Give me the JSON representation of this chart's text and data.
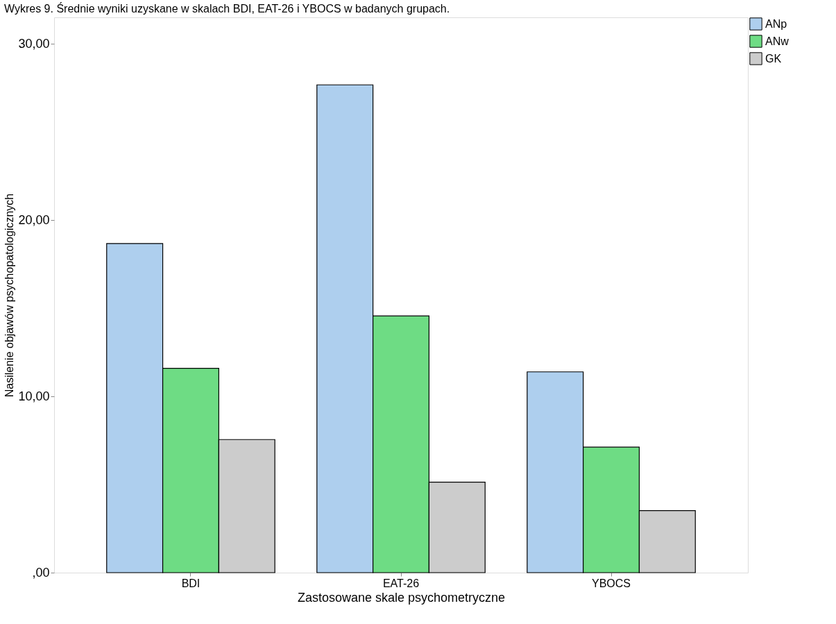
{
  "chart_data": {
    "type": "bar",
    "title": "Wykres 9. Średnie wyniki uzyskane w skalach BDI, EAT-26 i YBOCS w badanych grupach.",
    "xlabel": "Zastosowane skale psychometryczne",
    "ylabel": "Nasilenie objawów psychopatologicznych",
    "categories": [
      "BDI",
      "EAT-26",
      "YBOCS"
    ],
    "series": [
      {
        "name": "ANp",
        "color": "#aecfee",
        "values": [
          18.67,
          27.67,
          11.39
        ]
      },
      {
        "name": "ANw",
        "color": "#6edc84",
        "values": [
          11.59,
          14.56,
          7.12
        ]
      },
      {
        "name": "GK",
        "color": "#cccccc",
        "values": [
          7.55,
          5.13,
          3.52
        ]
      }
    ],
    "ylim": [
      0,
      31.5
    ],
    "yticks": [
      {
        "value": 0,
        "label": ",00"
      },
      {
        "value": 10,
        "label": "10,00"
      },
      {
        "value": 20,
        "label": "20,00"
      },
      {
        "value": 30,
        "label": "30,00"
      }
    ],
    "grid": false,
    "legend": "top right"
  }
}
